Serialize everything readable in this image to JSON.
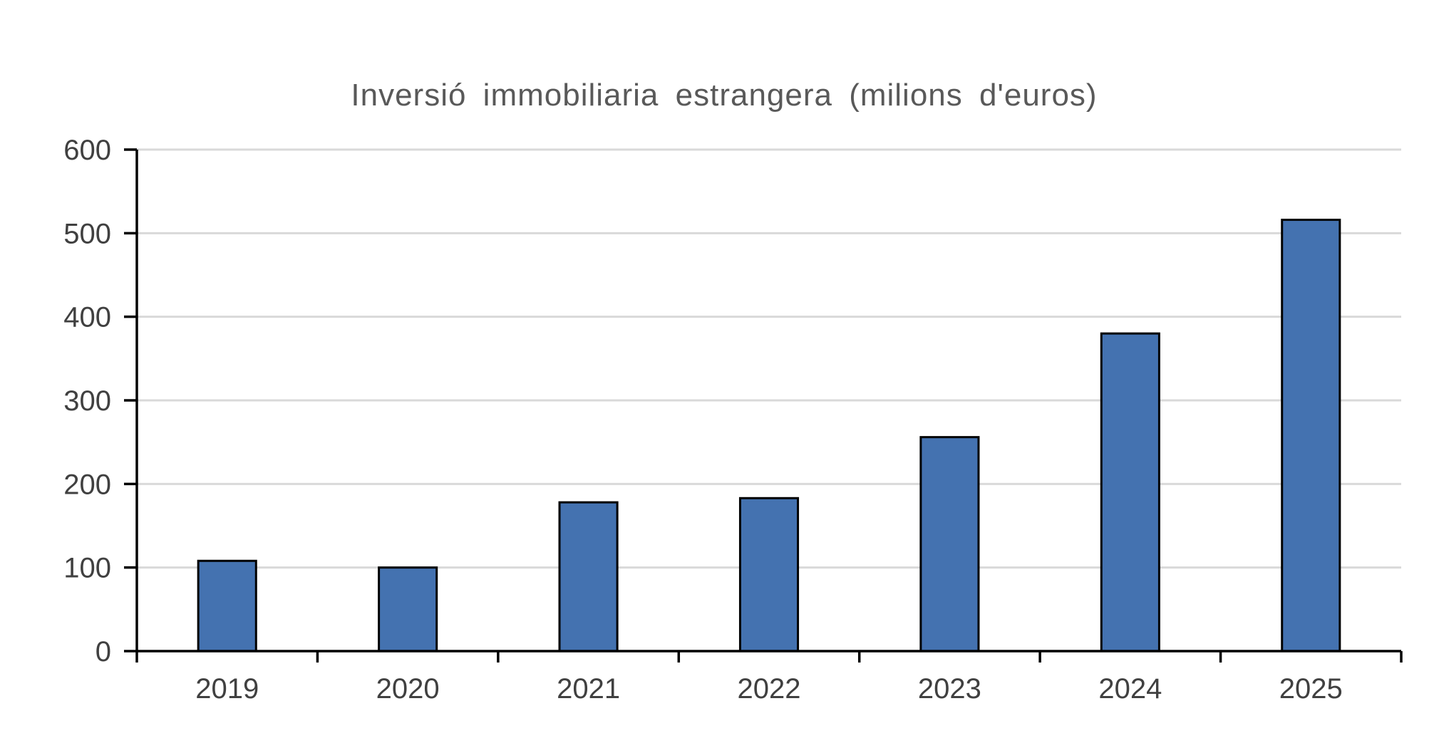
{
  "chart_data": {
    "type": "bar",
    "title": "Inversió immobiliaria estrangera (milions d'euros)",
    "xlabel": "",
    "ylabel": "",
    "categories": [
      "2019",
      "2020",
      "2021",
      "2022",
      "2023",
      "2024",
      "2025"
    ],
    "values": [
      108,
      100,
      178,
      183,
      256,
      380,
      516
    ],
    "ylim": [
      0,
      600
    ],
    "yticks": [
      0,
      100,
      200,
      300,
      400,
      500,
      600
    ],
    "grid": true,
    "legend": "none",
    "colors": {
      "bar": "#4472b0",
      "bar_outline": "#000000",
      "grid": "#d9d9d9",
      "text": "#404040",
      "title": "#595959"
    }
  }
}
